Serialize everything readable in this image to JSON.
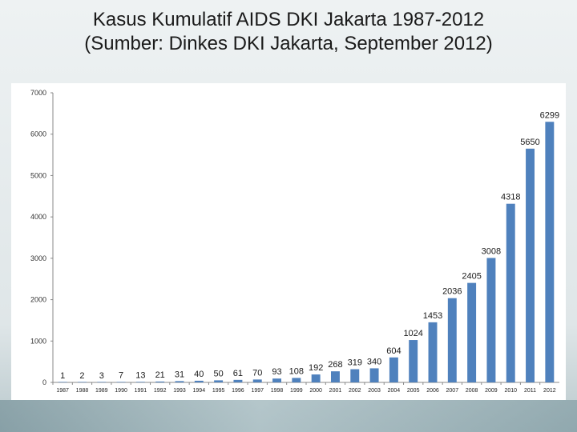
{
  "title": {
    "line1": "Kasus Kumulatif AIDS DKI Jakarta 1987-2012",
    "line2": "(Sumber: Dinkes DKI Jakarta, September 2012)"
  },
  "colors": {
    "bar": "#4f81bd",
    "axis": "#888888"
  },
  "chart_data": {
    "type": "bar",
    "title": "Kasus Kumulatif AIDS DKI Jakarta 1987-2012",
    "subtitle": "(Sumber: Dinkes DKI Jakarta, September 2012)",
    "xlabel": "",
    "ylabel": "",
    "categories": [
      "1987",
      "1988",
      "1989",
      "1990",
      "1991",
      "1992",
      "1993",
      "1994",
      "1995",
      "1996",
      "1997",
      "1998",
      "1999",
      "2000",
      "2001",
      "2002",
      "2003",
      "2004",
      "2005",
      "2006",
      "2007",
      "2008",
      "2009",
      "2010",
      "2011",
      "2012"
    ],
    "values": [
      1,
      2,
      3,
      7,
      13,
      21,
      31,
      40,
      50,
      61,
      70,
      93,
      108,
      192,
      268,
      319,
      340,
      604,
      1024,
      1453,
      2036,
      2405,
      3008,
      4318,
      5650,
      6299
    ],
    "ylim": [
      0,
      7000
    ],
    "yticks": [
      0,
      1000,
      2000,
      3000,
      4000,
      5000,
      6000,
      7000
    ],
    "grid": false,
    "legend": "none"
  }
}
